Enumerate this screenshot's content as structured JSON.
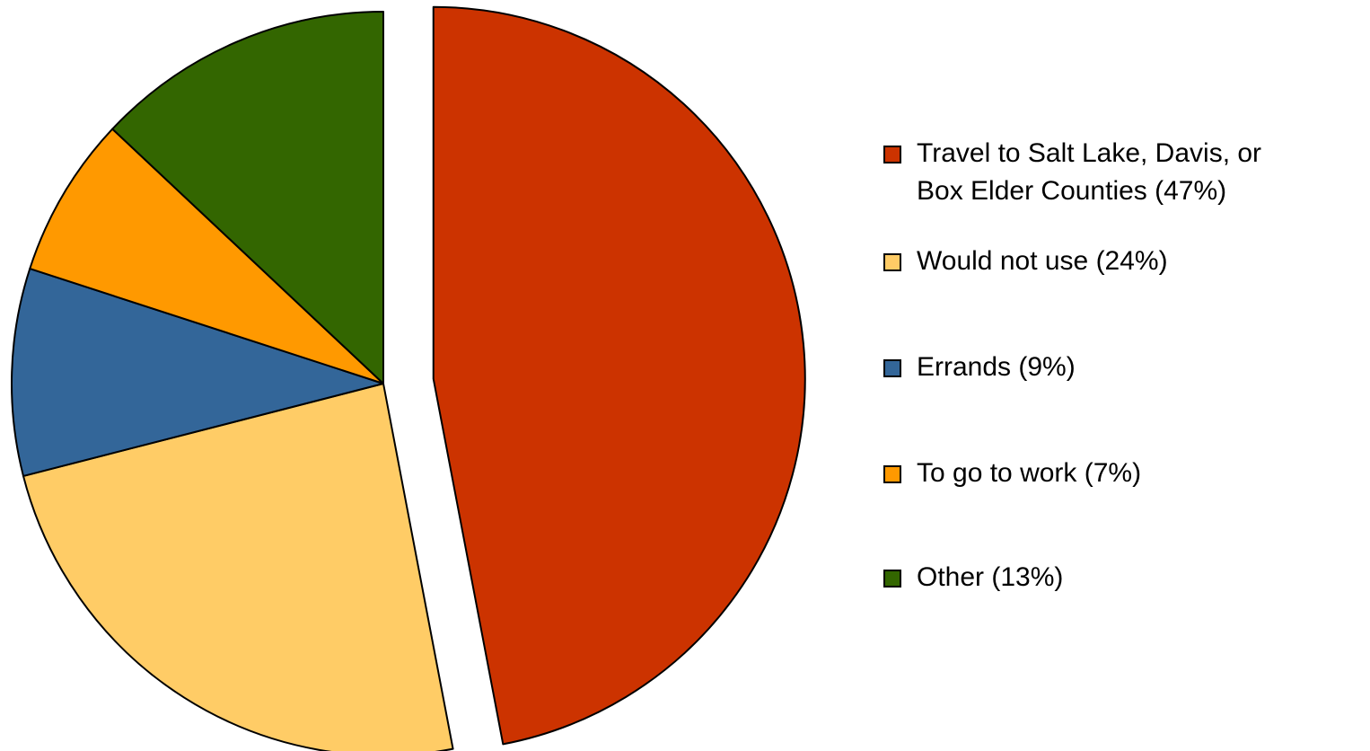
{
  "chart_data": {
    "type": "pie",
    "slices": [
      {
        "label": "Travel to Salt Lake, Davis, or Box Elder Counties (47%)",
        "value": 47,
        "color": "#CC3300",
        "exploded": true
      },
      {
        "label": "Would not use (24%)",
        "value": 24,
        "color": "#FFCC66",
        "exploded": false
      },
      {
        "label": "Errands (9%)",
        "value": 9,
        "color": "#336699",
        "exploded": false
      },
      {
        "label": "To go to work (7%)",
        "value": 7,
        "color": "#FF9900",
        "exploded": false
      },
      {
        "label": "Other (13%)",
        "value": 13,
        "color": "#336600",
        "exploded": false
      }
    ],
    "start_angle": "12 o'clock, clockwise",
    "legend_position": "right"
  }
}
